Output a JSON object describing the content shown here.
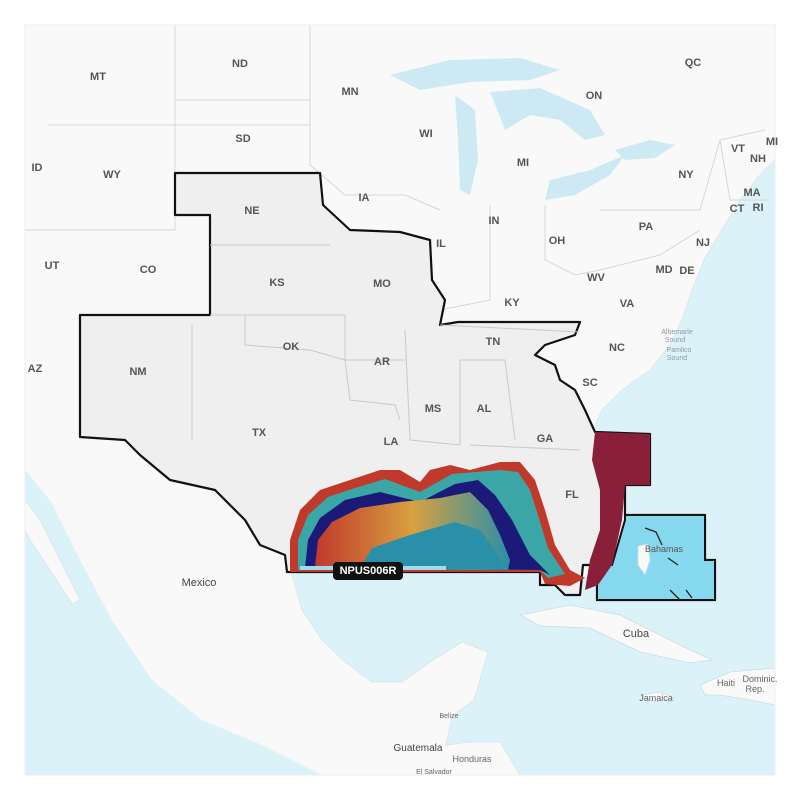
{
  "map": {
    "chart_label": "NPUS006R",
    "colors": {
      "water": "#dcf2f9",
      "land": "#f9f9f9",
      "coverage": "#efefef",
      "coverage_border": "#111111",
      "bahamas_area": "#86d8ef",
      "depth_shallow": "#c0392b",
      "depth_mid": "#2a8fa8",
      "depth_break": "#1c1a78",
      "atlantic_slope": "#8a1f3a"
    },
    "state_labels": [
      "MT",
      "ND",
      "MN",
      "WI",
      "MI",
      "ON",
      "QC",
      "VT",
      "NH",
      "MI",
      "NY",
      "MA",
      "CT",
      "RI",
      "PA",
      "NJ",
      "MD",
      "DE",
      "VA",
      "WV",
      "OH",
      "IN",
      "IL",
      "IA",
      "SD",
      "WY",
      "ID",
      "UT",
      "CO",
      "NE",
      "KS",
      "MO",
      "KY",
      "TN",
      "NC",
      "SC",
      "GA",
      "AL",
      "MS",
      "AR",
      "OK",
      "TX",
      "NM",
      "AZ",
      "LA",
      "FL"
    ],
    "country_labels": [
      "Mexico",
      "Cuba",
      "Bahamas",
      "Jamaica",
      "Haiti",
      "Dominic.",
      "Rep.",
      "Belize",
      "Guatemala",
      "Honduras",
      "El Salvador"
    ],
    "water_labels": [
      "Albemarle",
      "Sound",
      "Pamlico",
      "Sound"
    ]
  }
}
